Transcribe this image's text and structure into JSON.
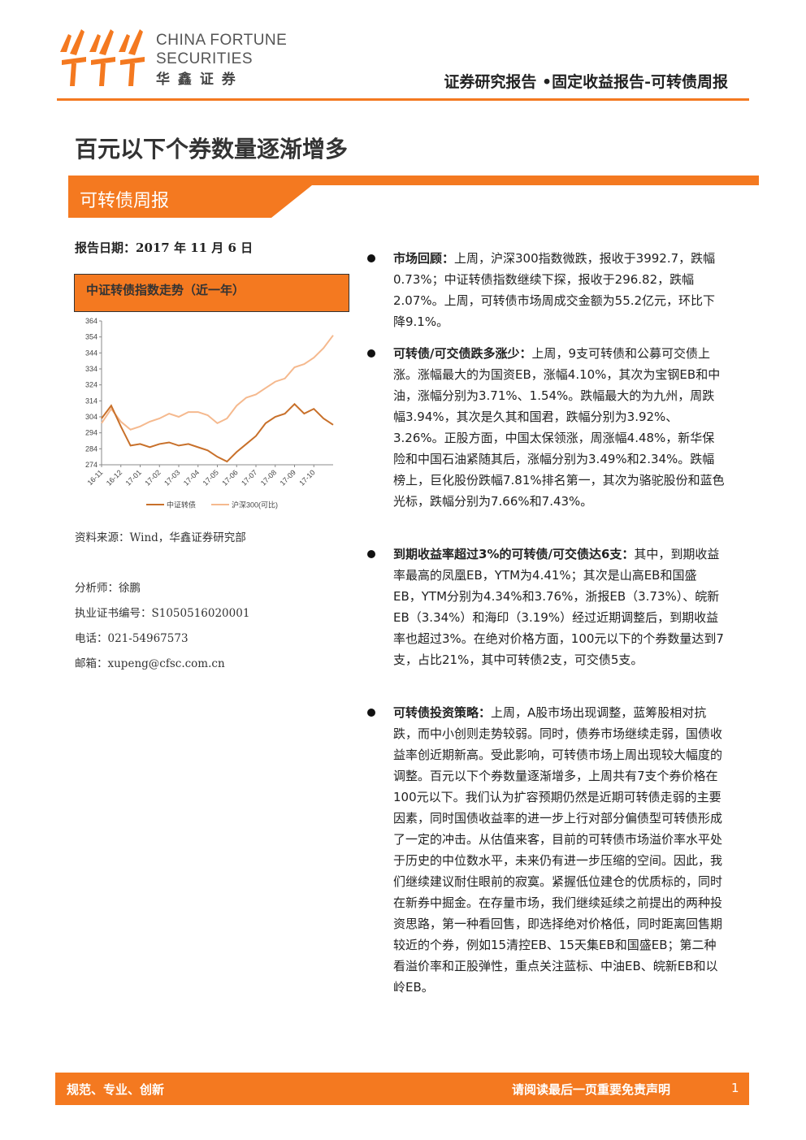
{
  "header": {
    "company_en": [
      "CHINA FORTUNE",
      "SECURITIES"
    ],
    "company_cn": "华 鑫 证 券",
    "report_type": "证券研究报告 •固定收益报告-可转债周报"
  },
  "title": "百元以下个券数量逐渐增多",
  "banner": "可转债周报",
  "report_date": "报告日期：2017 年 11 月 6 日",
  "chart_data": {
    "type": "line",
    "title": "中证转债指数走势（近一年）",
    "categories": [
      "16-11",
      null,
      "16-12",
      null,
      "17-01",
      null,
      "17-02",
      null,
      "17-03",
      null,
      "17-04",
      null,
      "17-05",
      null,
      "17-06",
      null,
      "17-07",
      null,
      "17-08",
      null,
      "17-09",
      null,
      "17-10",
      null,
      null
    ],
    "series": [
      {
        "name": "中证转债",
        "color": "#c8702a",
        "values": [
          303,
          311,
          298,
          286,
          287,
          285,
          287,
          288,
          286,
          287,
          285,
          283,
          279,
          276,
          282,
          287,
          292,
          300,
          304,
          306,
          312,
          306,
          309,
          303,
          299
        ]
      },
      {
        "name": "沪深300(可比)",
        "color": "#f5b98e",
        "values": [
          300,
          309,
          301,
          296,
          298,
          301,
          303,
          306,
          304,
          307,
          307,
          305,
          300,
          303,
          311,
          316,
          318,
          322,
          326,
          328,
          335,
          337,
          341,
          347,
          355
        ]
      }
    ],
    "ylim": [
      274,
      364
    ],
    "yticks": [
      274,
      284,
      294,
      304,
      314,
      324,
      334,
      344,
      354,
      364
    ],
    "legend": "bottom"
  },
  "source": "资料来源：Wind，华鑫证券研究部",
  "analyst": [
    "分析师：徐鹏",
    "执业证书编号：S1050516020001",
    "电话：021-54967573",
    "邮箱：xupeng@cfsc.com.cn"
  ],
  "bullets": [
    {
      "lead": "市场回顾：",
      "text": "上周，沪深300指数微跌，报收于3992.7，跌幅0.73%；中证转债指数继续下探，报收于296.82，跌幅2.07%。上周，可转债市场周成交金额为55.2亿元，环比下降9.1%。"
    },
    {
      "lead": "可转债/可交债跌多涨少：",
      "text": "上周，9支可转债和公募可交债上涨。涨幅最大的为国资EB，涨幅4.10%，其次为宝钢EB和中油，涨幅分别为3.71%、1.54%。跌幅最大的为九州，周跌幅3.94%，其次是久其和国君，跌幅分别为3.92%、3.26%。正股方面，中国太保领涨，周涨幅4.48%，新华保险和中国石油紧随其后，涨幅分别为3.49%和2.34%。跌幅榜上，巨化股份跌幅7.81%排名第一，其次为骆驼股份和蓝色光标，跌幅分别为7.66%和7.43%。"
    },
    {
      "lead": "到期收益率超过3%的可转债/可交债达6支：",
      "text": "其中，到期收益率最高的凤凰EB，YTM为4.41%；其次是山高EB和国盛EB，YTM分别为4.34%和3.76%，浙报EB（3.73%）、皖新EB（3.34%）和海印（3.19%）经过近期调整后，到期收益率也超过3%。在绝对价格方面，100元以下的个券数量达到7支，占比21%，其中可转债2支，可交债5支。"
    },
    {
      "lead": "可转债投资策略：",
      "text": "上周，A股市场出现调整，蓝筹股相对抗跌，而中小创则走势较弱。同时，债券市场继续走弱，国债收益率创近期新高。受此影响，可转债市场上周出现较大幅度的调整。百元以下个券数量逐渐增多，上周共有7支个券价格在100元以下。我们认为扩容预期仍然是近期可转债走弱的主要因素，同时国债收益率的进一步上行对部分偏债型可转债形成了一定的冲击。从估值来客，目前的可转债市场溢价率水平处于历史的中位数水平，未来仍有进一步压缩的空间。因此，我们继续建议耐住眼前的寂寞。紧握低位建仓的优质标的，同时在新券中掘金。在存量市场，我们继续延续之前提出的两种投资思路，第一种看回售，即选择绝对价格低，同时距离回售期较近的个券，例如15清控EB、15天集EB和国盛EB；第二种看溢价率和正股弹性，重点关注蓝标、中油EB、皖新EB和以岭EB。"
    }
  ],
  "footer": {
    "slogan": "规范、专业、创新",
    "disclaimer": "请阅读最后一页重要免责声明",
    "page": "1"
  }
}
